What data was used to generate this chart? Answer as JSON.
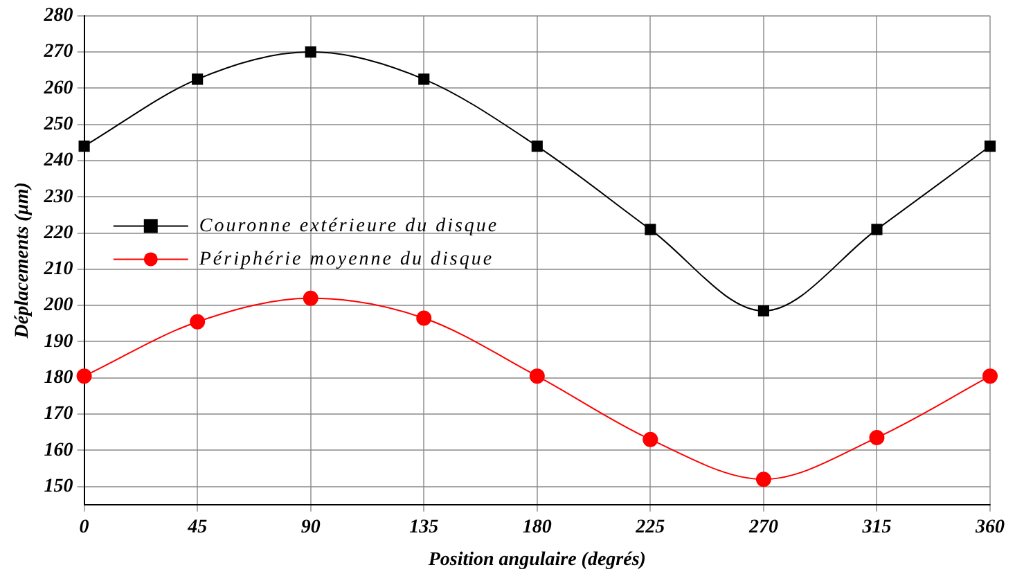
{
  "chart_data": {
    "type": "line",
    "xlabel": "Position angulaire (degrés)",
    "ylabel": "Déplacements (µm)",
    "x": [
      0,
      45,
      90,
      135,
      180,
      225,
      270,
      315,
      360
    ],
    "series": [
      {
        "name": "Couronne extérieure du disque",
        "color": "#000000",
        "marker": "square",
        "values": [
          244,
          262.5,
          270,
          262.5,
          244,
          221,
          198.5,
          221,
          244
        ]
      },
      {
        "name": "Périphérie moyenne du disque",
        "color": "#ff0000",
        "marker": "circle",
        "values": [
          180.5,
          195.5,
          202,
          196.5,
          180.5,
          163,
          152,
          163.5,
          180.5
        ]
      }
    ],
    "xlim": [
      0,
      360
    ],
    "xticks": [
      0,
      45,
      90,
      135,
      180,
      225,
      270,
      315,
      360
    ],
    "ylim": [
      145,
      280
    ],
    "yticks": [
      150,
      160,
      170,
      180,
      190,
      200,
      210,
      220,
      230,
      240,
      250,
      260,
      270,
      280
    ],
    "grid": true,
    "legend": "left",
    "line_style": "solid"
  }
}
